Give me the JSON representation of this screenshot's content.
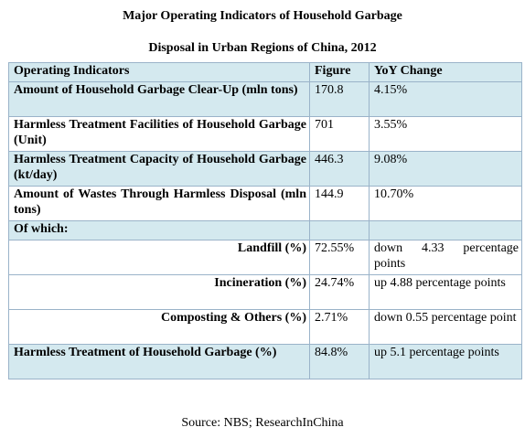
{
  "title_line1": "Major Operating Indicators of Household Garbage",
  "title_line2": "Disposal in Urban Regions of China, 2012",
  "table": {
    "headers": [
      "Operating Indicators",
      "Figure",
      "YoY Change"
    ],
    "rows": [
      {
        "label": "Amount of Household Garbage Clear-Up (mln tons)",
        "figure": "170.8",
        "change": "4.15%"
      },
      {
        "label": "Harmless Treatment Facilities of Household Garbage (Unit)",
        "figure": "701",
        "change": "3.55%"
      },
      {
        "label": "Harmless Treatment Capacity of Household Garbage (kt/day)",
        "figure": "446.3",
        "change": "9.08%"
      },
      {
        "label": "Amount of Wastes Through Harmless Disposal (mln tons)",
        "figure": "144.9",
        "change": "10.70%"
      },
      {
        "label": "Of which:",
        "figure": "",
        "change": ""
      },
      {
        "label": "Landfill (%)",
        "figure": "72.55%",
        "change": "down 4.33 percentage points"
      },
      {
        "label": "Incineration (%)",
        "figure": "24.74%",
        "change": "up 4.88 percentage points"
      },
      {
        "label": "Composting & Others (%)",
        "figure": "2.71%",
        "change": "down 0.55 percentage point"
      },
      {
        "label": "Harmless Treatment of Household Garbage (%)",
        "figure": "84.8%",
        "change": "up 5.1 percentage points"
      }
    ]
  },
  "source": "Source: NBS; ResearchInChina",
  "colors": {
    "row_shade": "#d4e9ef",
    "border": "#9ab3c9"
  }
}
